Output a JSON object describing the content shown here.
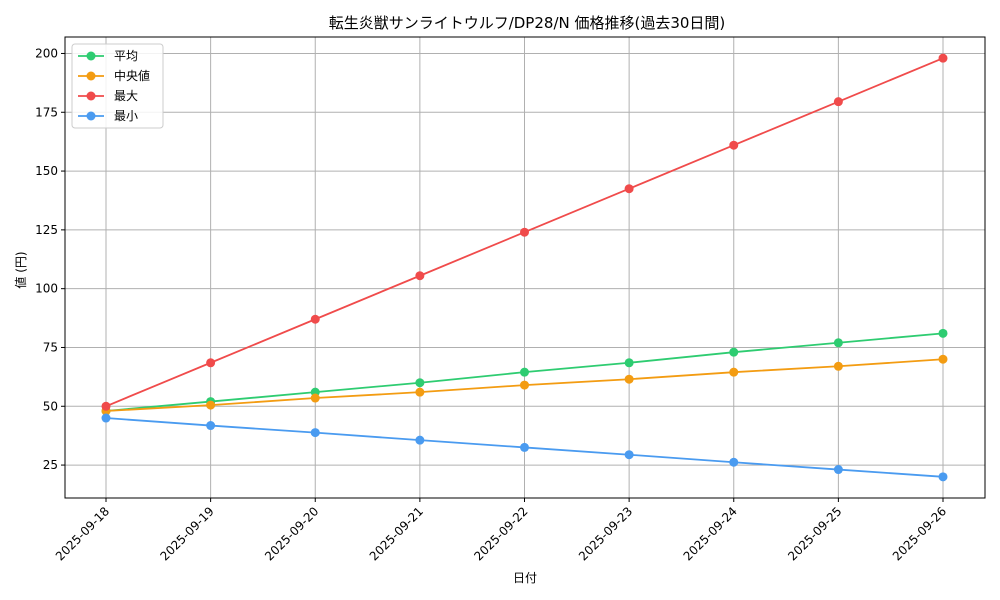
{
  "chart_data": {
    "type": "line",
    "title": "転生炎獣サンライトウルフ/DP28/N 価格推移(過去30日間)",
    "xlabel": "日付",
    "ylabel": "値 (円)",
    "categories": [
      "2025-09-18",
      "2025-09-19",
      "2025-09-20",
      "2025-09-21",
      "2025-09-22",
      "2025-09-23",
      "2025-09-24",
      "2025-09-25",
      "2025-09-26"
    ],
    "ylim": [
      11,
      207
    ],
    "yticks": [
      25,
      50,
      75,
      100,
      125,
      150,
      175,
      200
    ],
    "grid": true,
    "legend_position": "top-left",
    "series": [
      {
        "name": "平均",
        "color": "#2ecc71",
        "values": [
          48,
          52,
          56,
          60,
          64.5,
          68.5,
          73,
          77,
          81
        ]
      },
      {
        "name": "中央値",
        "color": "#f39c12",
        "values": [
          48,
          50.5,
          53.5,
          56,
          59,
          61.5,
          64.5,
          67,
          70
        ]
      },
      {
        "name": "最大",
        "color": "#f04b4b",
        "values": [
          50,
          68.5,
          87,
          105.5,
          124,
          142.5,
          161,
          179.5,
          198
        ]
      },
      {
        "name": "最小",
        "color": "#4a9bf0",
        "values": [
          45,
          41.8,
          38.8,
          35.6,
          32.5,
          29.4,
          26.2,
          23.1,
          20
        ]
      }
    ]
  }
}
